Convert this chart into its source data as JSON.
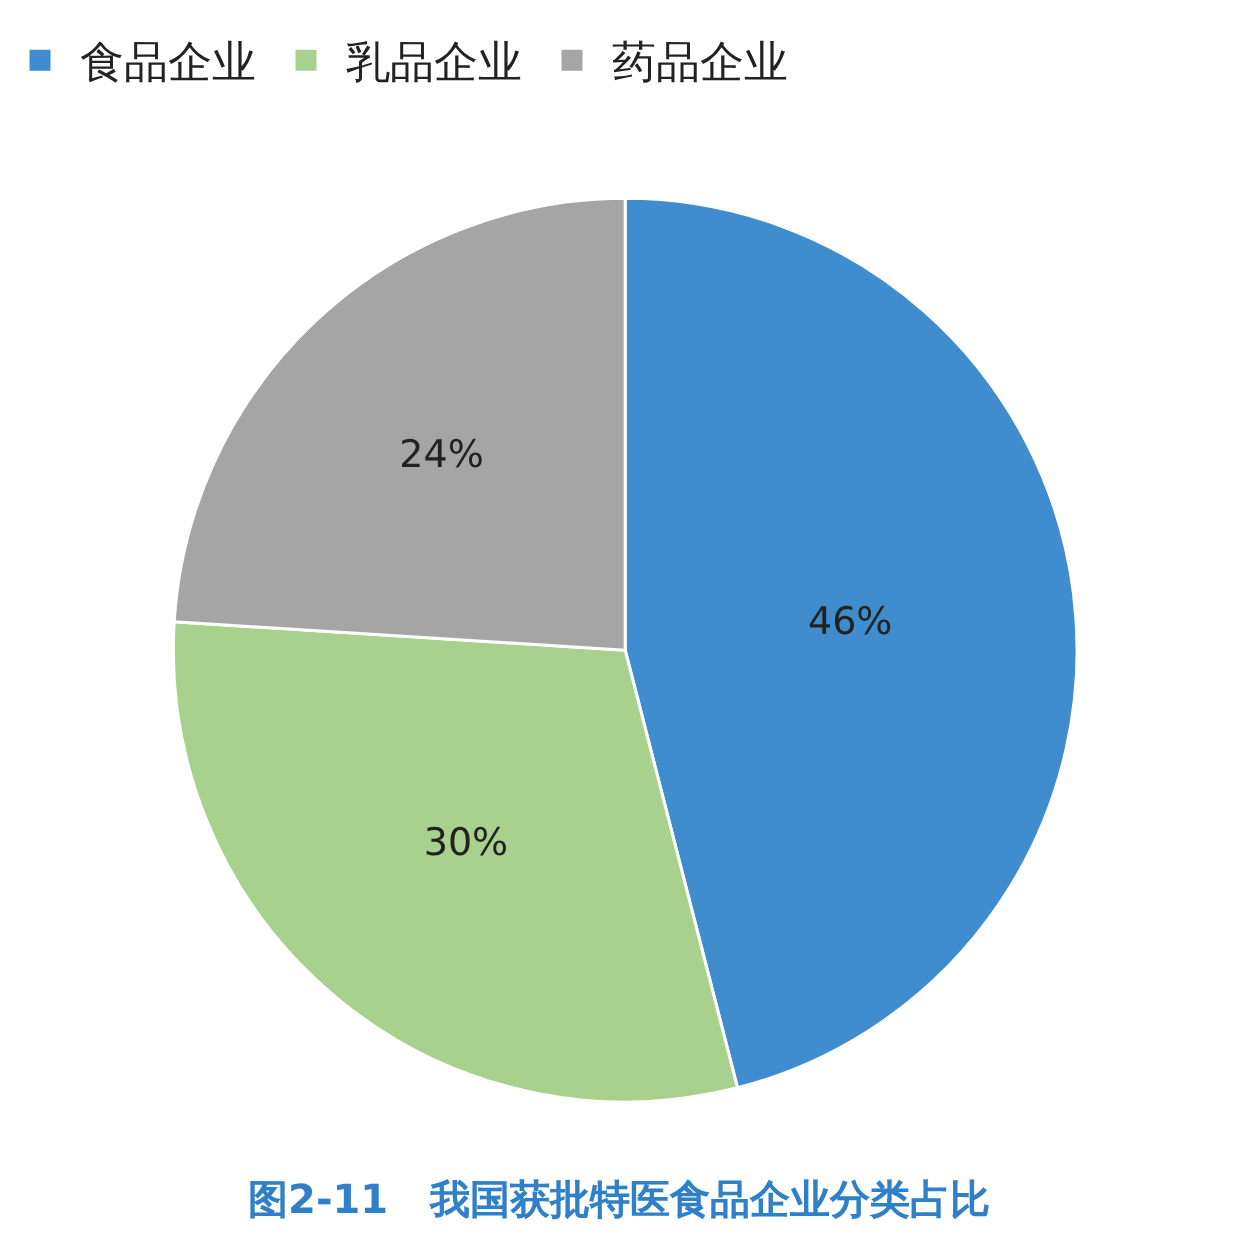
{
  "chart_data": {
    "type": "pie",
    "title": "图2-11   我国获批特医食品企业分类占比",
    "categories": [
      "食品企业",
      "乳品企业",
      "药品企业"
    ],
    "values": [
      46,
      30,
      24
    ],
    "colors": [
      "#3f8dce",
      "#a9d18e",
      "#a5a5a5"
    ],
    "value_labels": [
      "46%",
      "30%",
      "24%"
    ],
    "legend": "top left"
  }
}
